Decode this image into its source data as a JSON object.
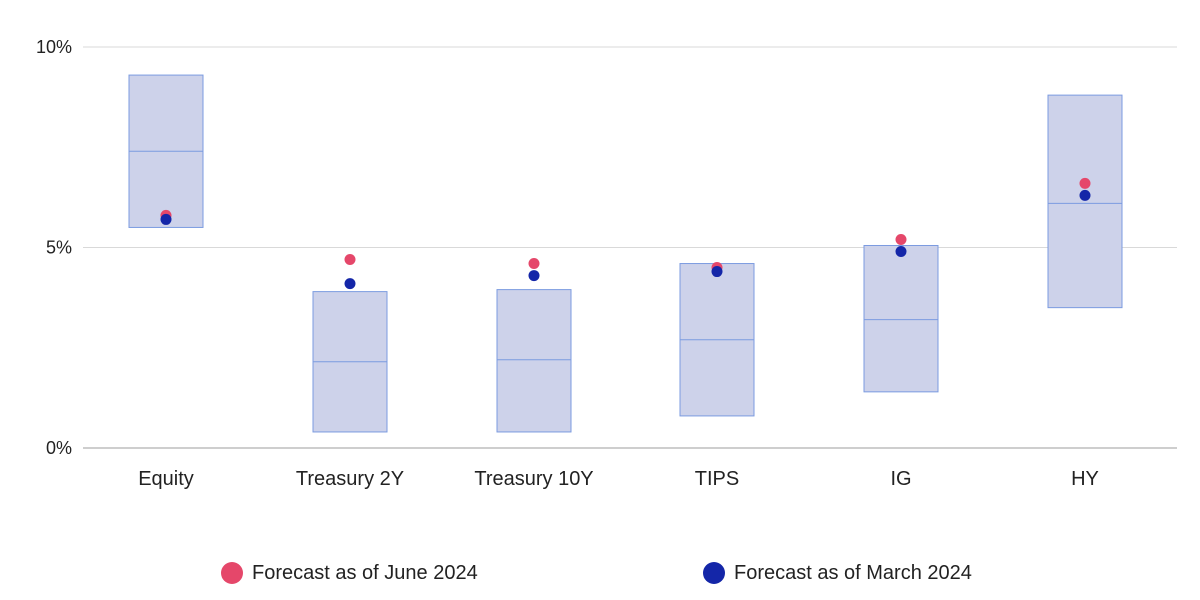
{
  "chart_data": {
    "type": "box",
    "categories": [
      "Equity",
      "Treasury 2Y",
      "Treasury 10Y",
      "TIPS",
      "IG",
      "HY"
    ],
    "ranges": [
      {
        "low": 5.5,
        "mid": 7.4,
        "high": 9.3
      },
      {
        "low": 0.4,
        "mid": 2.15,
        "high": 3.9
      },
      {
        "low": 0.4,
        "mid": 2.2,
        "high": 3.95
      },
      {
        "low": 0.8,
        "mid": 2.7,
        "high": 4.6
      },
      {
        "low": 1.4,
        "mid": 3.2,
        "high": 5.05
      },
      {
        "low": 3.5,
        "mid": 6.1,
        "high": 8.8
      }
    ],
    "series": [
      {
        "name": "Forecast as of June 2024",
        "color": "#E5476A",
        "values": [
          5.8,
          4.7,
          4.6,
          4.5,
          5.2,
          6.6
        ]
      },
      {
        "name": "Forecast as of March 2024",
        "color": "#1426A8",
        "values": [
          5.7,
          4.1,
          4.3,
          4.4,
          4.9,
          6.3
        ]
      }
    ],
    "yticks": [
      {
        "value": 0,
        "label": "0%"
      },
      {
        "value": 5,
        "label": "5%"
      },
      {
        "value": 10,
        "label": "10%"
      }
    ],
    "ylim": [
      0,
      10
    ],
    "grid": true,
    "legend_position": "bottom",
    "colors": {
      "box_fill": "#CDD2EA",
      "box_stroke": "#7B9BE0",
      "grid": "#D9D9D9",
      "axis": "#9E9E9E"
    }
  },
  "legend": {
    "june_label": "Forecast as of June 2024",
    "march_label": "Forecast as of March 2024"
  }
}
